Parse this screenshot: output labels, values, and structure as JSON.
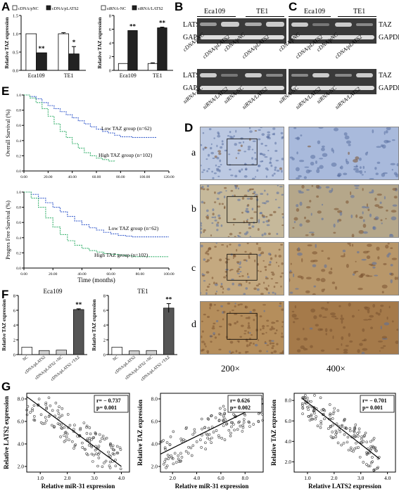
{
  "panel_labels": {
    "A": "A",
    "B": "B",
    "C": "C",
    "D": "D",
    "E": "E",
    "F": "F",
    "G": "G"
  },
  "colors": {
    "black_bar": "#222222",
    "white_bar": "#ffffff",
    "gray_bar": "#d0d0d0",
    "dark_bar": "#555555",
    "km_blue": "#3a5fcd",
    "km_green": "#3cb371",
    "blot_bg": "#3a3a3a",
    "ihc_blue": "#8aa0c8",
    "ihc_brown": "#b08050"
  },
  "panel_B": {
    "cell_lines": [
      "Eca109",
      "TE1"
    ],
    "proteins": [
      "LATS2",
      "GAPDH"
    ],
    "top_lanes": [
      "cDNA/pNC",
      "cDNA/pLATS2",
      "cDNA/pNC",
      "cDNA/pLATS2"
    ],
    "bottom_lanes": [
      "siRNA-NC",
      "siRNA/LATS2",
      "siRNA-NC",
      "siRNA/LATS2"
    ]
  },
  "panel_C": {
    "cell_lines": [
      "Eca109",
      "TE1"
    ],
    "proteins": [
      "TAZ",
      "GAPDH"
    ],
    "top_lanes": [
      "cDNA/pNC",
      "cDNA/pLATS2",
      "cDNA/pNC",
      "cDNA/pLATS2"
    ],
    "bottom_lanes": [
      "siRNA-NC",
      "siRNA/LATS2",
      "siRNA-NC",
      "siRNA/LATS2"
    ]
  },
  "panel_D": {
    "rows": [
      "a",
      "b",
      "c",
      "d"
    ],
    "magnifications": [
      "200×",
      "400×"
    ],
    "row_stain": [
      0.05,
      0.45,
      0.7,
      0.85
    ]
  },
  "chart_data": [
    {
      "id": "A1",
      "type": "bar",
      "categories": [
        "Eca109",
        "TE1"
      ],
      "series": [
        {
          "name": "cDNA/pNC",
          "values": [
            1.0,
            1.0
          ]
        },
        {
          "name": "cDNA/pLATS2",
          "values": [
            0.48,
            0.45
          ]
        }
      ],
      "errors": [
        [
          0,
          0
        ],
        [
          0.03,
          0.2
        ]
      ],
      "significance": [
        [
          "",
          "**"
        ],
        [
          "",
          "*"
        ]
      ],
      "ylabel": "Relative TAZ expression",
      "ylim": [
        0,
        1.5
      ],
      "yticks": [
        "0.0",
        "0.5",
        "1.0",
        "1.5"
      ]
    },
    {
      "id": "A2",
      "type": "bar",
      "categories": [
        "Eca109",
        "TE1"
      ],
      "series": [
        {
          "name": "siRNA-NC",
          "values": [
            1.0,
            1.0
          ]
        },
        {
          "name": "siRNA/LATS2",
          "values": [
            5.8,
            6.2
          ]
        }
      ],
      "errors": [
        [
          0,
          0
        ],
        [
          0.1,
          0.1
        ]
      ],
      "significance": [
        [
          "",
          "**"
        ],
        [
          "",
          "**"
        ]
      ],
      "ylabel": "Relative TAZ expression",
      "ylim": [
        0,
        8
      ],
      "yticks": [
        "0",
        "2",
        "4",
        "6",
        "8"
      ]
    },
    {
      "id": "E1",
      "type": "line",
      "ylabel": "Overall Survival (%)",
      "xticks": [
        "0.00",
        "20.00",
        "40.00",
        "60.00",
        "80.00",
        "100.00",
        "120.00"
      ],
      "yticks": [
        "0.0",
        "0.2",
        "0.4",
        "0.6",
        "0.8",
        "1.0"
      ],
      "xlim": [
        0,
        120
      ],
      "ylim": [
        0,
        1
      ],
      "series": [
        {
          "name": "Low TAZ group (n=62)",
          "x": [
            0,
            5,
            10,
            15,
            20,
            25,
            30,
            35,
            40,
            45,
            50,
            55,
            60,
            65,
            70,
            75,
            80,
            90,
            100,
            110
          ],
          "y": [
            1.0,
            0.98,
            0.95,
            0.9,
            0.86,
            0.82,
            0.78,
            0.74,
            0.7,
            0.66,
            0.62,
            0.58,
            0.55,
            0.52,
            0.5,
            0.47,
            0.45,
            0.44,
            0.44,
            0.44
          ]
        },
        {
          "name": "High TAZ group (n=102)",
          "x": [
            0,
            5,
            10,
            15,
            20,
            25,
            30,
            35,
            40,
            45,
            50,
            55,
            60,
            65,
            70,
            75
          ],
          "y": [
            1.0,
            0.96,
            0.9,
            0.82,
            0.72,
            0.62,
            0.52,
            0.44,
            0.36,
            0.3,
            0.24,
            0.2,
            0.17,
            0.15,
            0.13,
            0.12
          ]
        }
      ]
    },
    {
      "id": "E2",
      "type": "line",
      "ylabel": "Progres Free Survival (%)",
      "xlabel": "Time (months)",
      "xticks": [
        "0.00",
        "20.00",
        "40.00",
        "60.00",
        "80.00",
        "100.00"
      ],
      "yticks": [
        "0.0",
        "0.2",
        "0.4",
        "0.6",
        "0.8",
        "1.0"
      ],
      "xlim": [
        0,
        100
      ],
      "ylim": [
        0,
        1
      ],
      "series": [
        {
          "name": "Low TAZ group (n=62)",
          "x": [
            0,
            5,
            10,
            15,
            20,
            25,
            30,
            35,
            40,
            45,
            50,
            55,
            60,
            65,
            70,
            75,
            80,
            90,
            100
          ],
          "y": [
            1.0,
            0.97,
            0.92,
            0.86,
            0.8,
            0.74,
            0.68,
            0.62,
            0.57,
            0.53,
            0.5,
            0.47,
            0.45,
            0.43,
            0.42,
            0.41,
            0.41,
            0.41,
            0.41
          ]
        },
        {
          "name": "High TAZ group (n=102)",
          "x": [
            0,
            5,
            10,
            15,
            20,
            25,
            30,
            35,
            40,
            45,
            50,
            55,
            60,
            65,
            70,
            75,
            80,
            90,
            100
          ],
          "y": [
            1.0,
            0.92,
            0.8,
            0.66,
            0.54,
            0.44,
            0.36,
            0.3,
            0.26,
            0.23,
            0.21,
            0.19,
            0.18,
            0.17,
            0.16,
            0.15,
            0.15,
            0.15,
            0.15
          ]
        }
      ]
    },
    {
      "id": "F1",
      "type": "bar",
      "title": "Eca109",
      "categories": [
        "NC",
        "cDNA/pLATS2",
        "cDNA/pLATS2 +NC",
        "cDNA/pLATS2 +TAZ"
      ],
      "values": [
        1.0,
        0.55,
        0.6,
        6.1
      ],
      "errors": [
        0,
        0,
        0,
        0.1
      ],
      "significance": [
        "",
        "",
        "",
        "**"
      ],
      "ylabel": "Relative TAZ expression",
      "ylim": [
        0,
        8
      ],
      "yticks": [
        "0",
        "2",
        "4",
        "6",
        "8"
      ]
    },
    {
      "id": "F2",
      "type": "bar",
      "title": "TE1",
      "categories": [
        "NC",
        "cDNA/pLATS2",
        "cDNA/pLATS2 +NC",
        "cDNA/pLATS2 +TAZ"
      ],
      "values": [
        1.0,
        0.5,
        0.55,
        6.3
      ],
      "errors": [
        0,
        0,
        0,
        0.6
      ],
      "significance": [
        "",
        "",
        "",
        "**"
      ],
      "ylabel": "Relative TAZ expression",
      "ylim": [
        0,
        8
      ],
      "yticks": [
        "0",
        "2",
        "4",
        "6",
        "8"
      ]
    },
    {
      "id": "G1",
      "type": "scatter",
      "xlabel": "Relative miR-31 expression",
      "ylabel": "Relative LATS2 expression",
      "stats": [
        "r= − 0.737",
        "p= 0.001"
      ],
      "xlim": [
        0.5,
        4.3
      ],
      "ylim": [
        1.5,
        8.5
      ],
      "xticks": [
        "1.0",
        "2.0",
        "3.0",
        "4.0"
      ],
      "yticks": [
        "2.0",
        "4.0",
        "6.0",
        "8.0"
      ],
      "fit": {
        "x": [
          0.5,
          4.0
        ],
        "y": [
          8.2,
          2.0
        ]
      }
    },
    {
      "id": "G2",
      "type": "scatter",
      "xlabel": "Relative miR-31 expression",
      "ylabel": "Relative TAZ expression",
      "stats": [
        "r= 0.626",
        "p= 0.002"
      ],
      "xlim": [
        1.0,
        9.5
      ],
      "ylim": [
        1.5,
        8.5
      ],
      "xticks": [
        "2.0",
        "4.0",
        "6.0",
        "8.0"
      ],
      "yticks": [
        "2.0",
        "4.0",
        "6.0",
        "8.0"
      ],
      "fit": {
        "x": [
          1.0,
          9.5
        ],
        "y": [
          3.1,
          7.6
        ]
      }
    },
    {
      "id": "G3",
      "type": "scatter",
      "xlabel": "Relative LATS2 expression",
      "ylabel": "Relative TAZ expression",
      "stats": [
        "r= − 0.701",
        "p= 0.001"
      ],
      "xlim": [
        0.5,
        4.3
      ],
      "ylim": [
        1.0,
        8.7
      ],
      "xticks": [
        "1.0",
        "2.0",
        "3.0",
        "4.0"
      ],
      "yticks": [
        "2.0",
        "4.0",
        "6.0",
        "8.0"
      ],
      "fit": {
        "x": [
          0.8,
          3.7
        ],
        "y": [
          8.2,
          2.3
        ]
      }
    }
  ]
}
